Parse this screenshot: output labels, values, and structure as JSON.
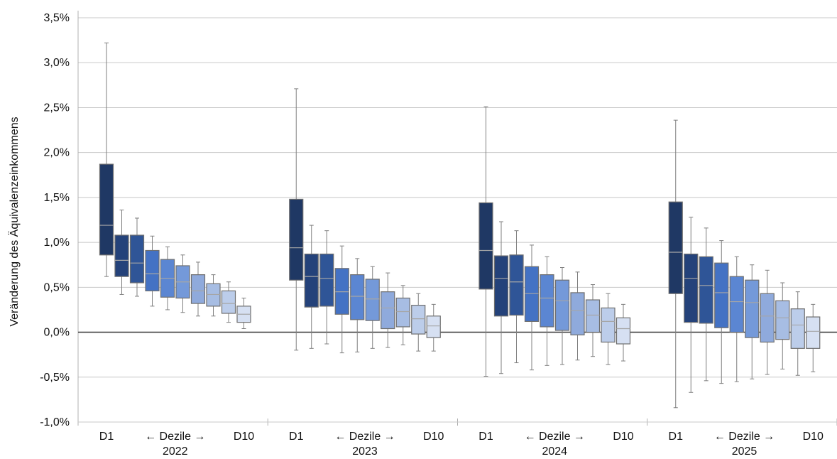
{
  "chart_data": {
    "type": "box",
    "ylabel": "Veränderung des Äquivalenzeinkommens",
    "ylim": [
      -1.0,
      3.5
    ],
    "y_ticks": [
      "-1,0%",
      "-0,5%",
      "0,0%",
      "0,5%",
      "1,0%",
      "1,5%",
      "2,0%",
      "2,5%",
      "3,0%",
      "3,5%"
    ],
    "grid": true,
    "decile_colors": [
      "#1f3864",
      "#24427a",
      "#2f5597",
      "#4472c4",
      "#5b86d2",
      "#7499d9",
      "#8faadc",
      "#a7bde3",
      "#bccdea",
      "#d6e0f2"
    ],
    "groups": [
      {
        "year": "2022",
        "label_first": "D1",
        "label_mid": "← Dezile →",
        "label_last": "D10",
        "boxes": [
          {
            "decile": "D1",
            "whisker_low": 0.62,
            "q1": 0.86,
            "median": 1.19,
            "q3": 1.87,
            "whisker_high": 3.22
          },
          {
            "decile": "D2",
            "whisker_low": 0.42,
            "q1": 0.62,
            "median": 0.8,
            "q3": 1.08,
            "whisker_high": 1.36
          },
          {
            "decile": "D3",
            "whisker_low": 0.4,
            "q1": 0.55,
            "median": 0.77,
            "q3": 1.08,
            "whisker_high": 1.27
          },
          {
            "decile": "D4",
            "whisker_low": 0.29,
            "q1": 0.46,
            "median": 0.65,
            "q3": 0.91,
            "whisker_high": 1.07
          },
          {
            "decile": "D5",
            "whisker_low": 0.25,
            "q1": 0.39,
            "median": 0.6,
            "q3": 0.81,
            "whisker_high": 0.95
          },
          {
            "decile": "D6",
            "whisker_low": 0.22,
            "q1": 0.38,
            "median": 0.56,
            "q3": 0.74,
            "whisker_high": 0.86
          },
          {
            "decile": "D7",
            "whisker_low": 0.18,
            "q1": 0.32,
            "median": 0.46,
            "q3": 0.64,
            "whisker_high": 0.78
          },
          {
            "decile": "D8",
            "whisker_low": 0.18,
            "q1": 0.29,
            "median": 0.42,
            "q3": 0.54,
            "whisker_high": 0.64
          },
          {
            "decile": "D9",
            "whisker_low": 0.11,
            "q1": 0.21,
            "median": 0.32,
            "q3": 0.46,
            "whisker_high": 0.56
          },
          {
            "decile": "D10",
            "whisker_low": 0.04,
            "q1": 0.11,
            "median": 0.2,
            "q3": 0.29,
            "whisker_high": 0.38
          }
        ]
      },
      {
        "year": "2023",
        "label_first": "D1",
        "label_mid": "← Dezile →",
        "label_last": "D10",
        "boxes": [
          {
            "decile": "D1",
            "whisker_low": -0.2,
            "q1": 0.58,
            "median": 0.94,
            "q3": 1.48,
            "whisker_high": 2.71
          },
          {
            "decile": "D2",
            "whisker_low": -0.18,
            "q1": 0.28,
            "median": 0.62,
            "q3": 0.87,
            "whisker_high": 1.19
          },
          {
            "decile": "D3",
            "whisker_low": -0.13,
            "q1": 0.29,
            "median": 0.6,
            "q3": 0.87,
            "whisker_high": 1.13
          },
          {
            "decile": "D4",
            "whisker_low": -0.23,
            "q1": 0.2,
            "median": 0.45,
            "q3": 0.71,
            "whisker_high": 0.96
          },
          {
            "decile": "D5",
            "whisker_low": -0.22,
            "q1": 0.14,
            "median": 0.4,
            "q3": 0.64,
            "whisker_high": 0.82
          },
          {
            "decile": "D6",
            "whisker_low": -0.18,
            "q1": 0.13,
            "median": 0.37,
            "q3": 0.59,
            "whisker_high": 0.73
          },
          {
            "decile": "D7",
            "whisker_low": -0.17,
            "q1": 0.04,
            "median": 0.27,
            "q3": 0.45,
            "whisker_high": 0.66
          },
          {
            "decile": "D8",
            "whisker_low": -0.14,
            "q1": 0.06,
            "median": 0.23,
            "q3": 0.38,
            "whisker_high": 0.52
          },
          {
            "decile": "D9",
            "whisker_low": -0.21,
            "q1": -0.02,
            "median": 0.15,
            "q3": 0.3,
            "whisker_high": 0.43
          },
          {
            "decile": "D10",
            "whisker_low": -0.21,
            "q1": -0.06,
            "median": 0.07,
            "q3": 0.18,
            "whisker_high": 0.31
          }
        ]
      },
      {
        "year": "2024",
        "label_first": "D1",
        "label_mid": "← Dezile →",
        "label_last": "D10",
        "boxes": [
          {
            "decile": "D1",
            "whisker_low": -0.49,
            "q1": 0.48,
            "median": 0.91,
            "q3": 1.44,
            "whisker_high": 2.51
          },
          {
            "decile": "D2",
            "whisker_low": -0.46,
            "q1": 0.18,
            "median": 0.6,
            "q3": 0.85,
            "whisker_high": 1.23
          },
          {
            "decile": "D3",
            "whisker_low": -0.34,
            "q1": 0.19,
            "median": 0.56,
            "q3": 0.86,
            "whisker_high": 1.13
          },
          {
            "decile": "D4",
            "whisker_low": -0.42,
            "q1": 0.12,
            "median": 0.43,
            "q3": 0.73,
            "whisker_high": 0.97
          },
          {
            "decile": "D5",
            "whisker_low": -0.37,
            "q1": 0.06,
            "median": 0.38,
            "q3": 0.64,
            "whisker_high": 0.84
          },
          {
            "decile": "D6",
            "whisker_low": -0.36,
            "q1": 0.02,
            "median": 0.35,
            "q3": 0.58,
            "whisker_high": 0.72
          },
          {
            "decile": "D7",
            "whisker_low": -0.31,
            "q1": -0.03,
            "median": 0.24,
            "q3": 0.44,
            "whisker_high": 0.67
          },
          {
            "decile": "D8",
            "whisker_low": -0.27,
            "q1": 0.0,
            "median": 0.19,
            "q3": 0.36,
            "whisker_high": 0.53
          },
          {
            "decile": "D9",
            "whisker_low": -0.36,
            "q1": -0.11,
            "median": 0.12,
            "q3": 0.27,
            "whisker_high": 0.43
          },
          {
            "decile": "D10",
            "whisker_low": -0.32,
            "q1": -0.13,
            "median": 0.04,
            "q3": 0.16,
            "whisker_high": 0.31
          }
        ]
      },
      {
        "year": "2025",
        "label_first": "D1",
        "label_mid": "← Dezile →",
        "label_last": "D10",
        "boxes": [
          {
            "decile": "D1",
            "whisker_low": -0.84,
            "q1": 0.43,
            "median": 0.89,
            "q3": 1.45,
            "whisker_high": 2.36
          },
          {
            "decile": "D2",
            "whisker_low": -0.67,
            "q1": 0.11,
            "median": 0.6,
            "q3": 0.87,
            "whisker_high": 1.28
          },
          {
            "decile": "D3",
            "whisker_low": -0.54,
            "q1": 0.1,
            "median": 0.52,
            "q3": 0.84,
            "whisker_high": 1.16
          },
          {
            "decile": "D4",
            "whisker_low": -0.57,
            "q1": 0.05,
            "median": 0.44,
            "q3": 0.77,
            "whisker_high": 1.02
          },
          {
            "decile": "D5",
            "whisker_low": -0.55,
            "q1": 0.0,
            "median": 0.34,
            "q3": 0.62,
            "whisker_high": 0.84
          },
          {
            "decile": "D6",
            "whisker_low": -0.52,
            "q1": -0.06,
            "median": 0.33,
            "q3": 0.58,
            "whisker_high": 0.75
          },
          {
            "decile": "D7",
            "whisker_low": -0.47,
            "q1": -0.11,
            "median": 0.18,
            "q3": 0.43,
            "whisker_high": 0.69
          },
          {
            "decile": "D8",
            "whisker_low": -0.41,
            "q1": -0.08,
            "median": 0.16,
            "q3": 0.35,
            "whisker_high": 0.55
          },
          {
            "decile": "D9",
            "whisker_low": -0.48,
            "q1": -0.18,
            "median": 0.08,
            "q3": 0.26,
            "whisker_high": 0.45
          },
          {
            "decile": "D10",
            "whisker_low": -0.44,
            "q1": -0.18,
            "median": 0.01,
            "q3": 0.17,
            "whisker_high": 0.31
          }
        ]
      }
    ]
  }
}
